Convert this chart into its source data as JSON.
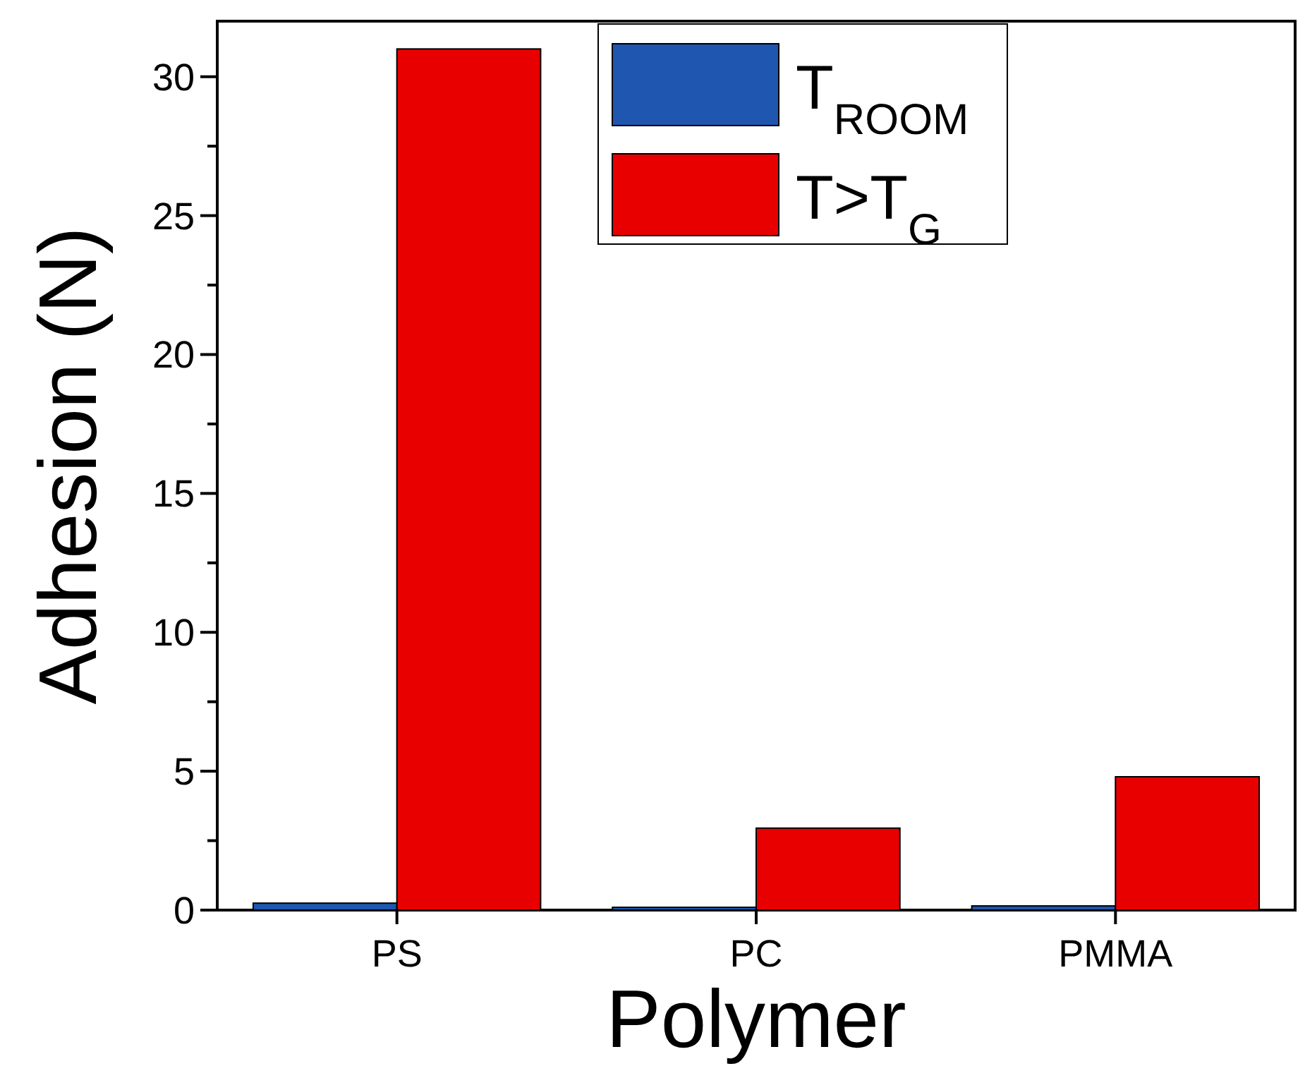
{
  "chart_data": {
    "type": "bar",
    "xlabel": "Polymer",
    "ylabel": "Adhesion (N)",
    "categories": [
      "PS",
      "PC",
      "PMMA"
    ],
    "series": [
      {
        "name": "T$_{ROOM}$",
        "color": "#1e56b0",
        "values": [
          0.25,
          0.1,
          0.15
        ]
      },
      {
        "name": "T>T$_{G}$",
        "color": "#e80000",
        "values": [
          31,
          2.95,
          4.8
        ]
      }
    ],
    "ylim": [
      0,
      32
    ],
    "yticks": [
      0,
      {
        "value": 2.5,
        "label": null
      },
      5,
      {
        "value": 7.5,
        "label": null
      },
      10,
      {
        "value": 12.5,
        "label": null
      },
      15,
      {
        "value": 17.5,
        "label": null
      },
      20,
      {
        "value": 22.5,
        "label": null
      },
      25,
      {
        "value": 27.5,
        "label": null
      },
      30
    ],
    "grid": false,
    "legend": "top right"
  }
}
